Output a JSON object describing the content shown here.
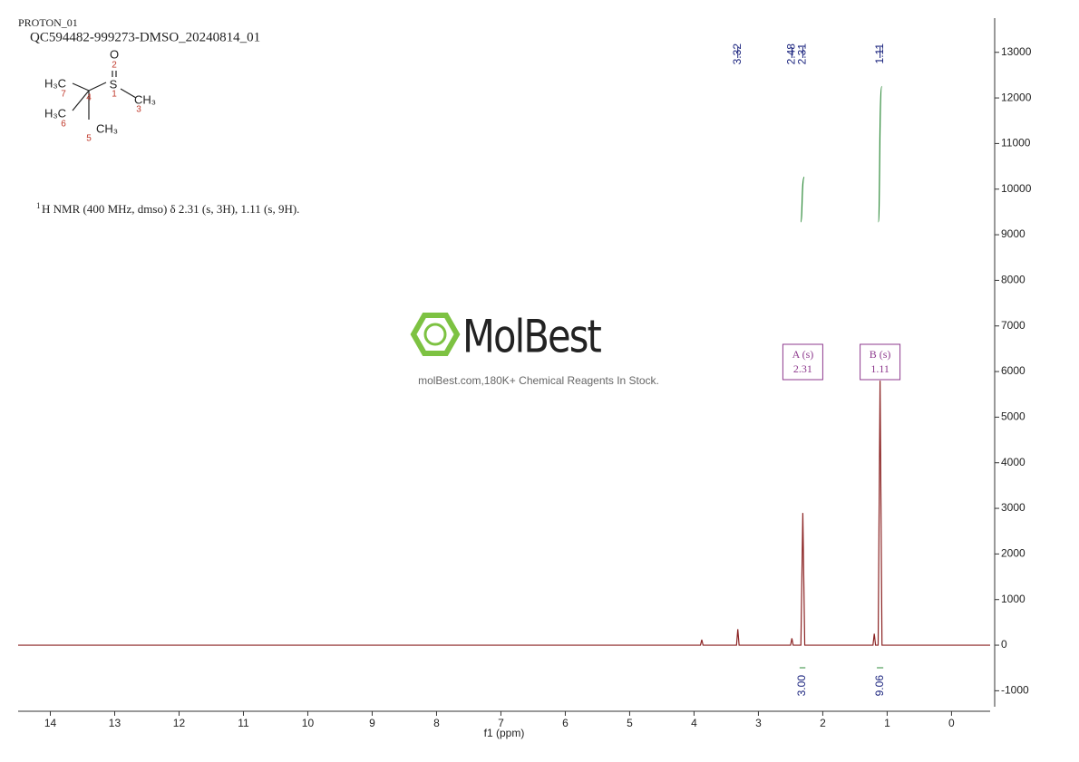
{
  "chart_data": {
    "type": "nmr",
    "experiment": "PROTON_01",
    "sample": "QC594482-999273-DMSO_20240814_01",
    "nmr_description": {
      "sup": "1",
      "text": "H NMR (400 MHz, dmso) δ 2.31 (s, 3H), 1.11 (s, 9H)."
    },
    "watermark": {
      "brand": "MolBest",
      "slogan": "molBest.com,180K+ Chemical Reagents In Stock."
    },
    "structure": {
      "labels": [
        "O",
        "2",
        "S",
        "1",
        "CH₃",
        "3",
        "H₃C",
        "7",
        "4",
        "H₃C",
        "6",
        "CH₃",
        "5"
      ]
    },
    "x_label": "f1 (ppm)",
    "color": "#8b2323",
    "x": [
      14.5,
      3.9,
      3.88,
      3.86,
      3.34,
      3.32,
      3.3,
      2.5,
      2.48,
      2.46,
      2.34,
      2.31,
      2.28,
      1.22,
      1.2,
      1.18,
      1.14,
      1.11,
      1.08,
      -0.6
    ],
    "values": [
      0,
      0,
      120,
      0,
      0,
      350,
      0,
      0,
      150,
      0,
      0,
      2900,
      0,
      0,
      250,
      0,
      0,
      5800,
      0,
      0
    ],
    "peak_labels": [
      3.32,
      2.48,
      2.31,
      1.11
    ],
    "multiplets": [
      {
        "label": "A (s)",
        "shift": 2.31
      },
      {
        "label": "B (s)",
        "shift": 1.11
      }
    ],
    "integrals": {
      "ranges": [
        [
          2.36,
          2.27
        ],
        [
          1.16,
          1.06
        ]
      ],
      "values": [
        3,
        9.06
      ],
      "value_labels": [
        "3.00",
        "9.06"
      ]
    },
    "xlim": [
      14.5,
      -0.6
    ],
    "ylim": [
      -1350,
      13750
    ],
    "xticks": [
      14,
      13,
      12,
      11,
      10,
      9,
      8,
      7,
      6,
      5,
      4,
      3,
      2,
      1,
      0
    ],
    "yticks": [
      -1000,
      0,
      1000,
      2000,
      3000,
      4000,
      5000,
      6000,
      7000,
      8000,
      9000,
      10000,
      11000,
      12000,
      13000
    ]
  }
}
